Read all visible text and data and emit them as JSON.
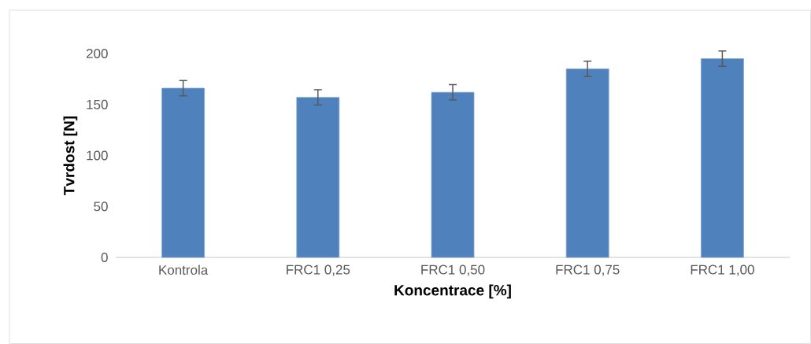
{
  "chart_data": {
    "type": "bar",
    "xlabel": "Koncentrace [%]",
    "ylabel": "Tvrdost [N]",
    "categories": [
      "Kontrola",
      "FRC1 0,25",
      "FRC1 0,50",
      "FRC1 0,75",
      "FRC1 1,00"
    ],
    "values": [
      166,
      157,
      162,
      185,
      195
    ],
    "errors": [
      7.5,
      7.5,
      7.5,
      7.5,
      7.5
    ],
    "color": "#4f81bd",
    "ylim": [
      0,
      200
    ],
    "yticks": [
      0,
      50,
      100,
      150,
      200
    ]
  }
}
